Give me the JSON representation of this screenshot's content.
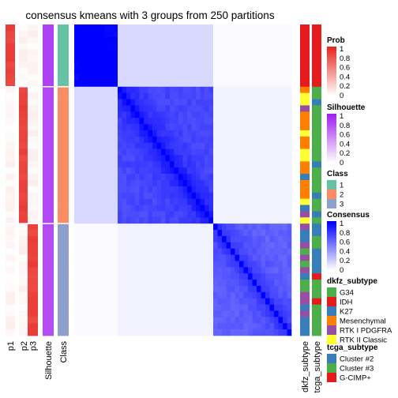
{
  "chart_data": {
    "type": "heatmap",
    "title": "consensus kmeans with 3 groups from 250 partitions",
    "n_samples": 50,
    "class_groups": [
      {
        "class": 1,
        "count": 10
      },
      {
        "class": 2,
        "count": 22
      },
      {
        "class": 3,
        "count": 18
      }
    ],
    "columns": [
      {
        "name": "p1",
        "label": "p1"
      },
      {
        "name": "p2",
        "label": "p2"
      },
      {
        "name": "p3",
        "label": "p3"
      },
      {
        "name": "silhouette",
        "label": "Silhouette"
      },
      {
        "name": "class",
        "label": "Class"
      }
    ],
    "right_columns": [
      {
        "name": "dkfz",
        "label": "dkfz_subtype"
      },
      {
        "name": "tcga",
        "label": "tcga_subtype"
      }
    ],
    "block_consensus": [
      [
        0.97,
        0.15,
        0.02
      ],
      [
        0.15,
        0.72,
        0.05
      ],
      [
        0.02,
        0.05,
        0.62
      ]
    ],
    "legends": {
      "prob": {
        "title": "Prob",
        "ticks": [
          "1",
          "0.8",
          "0.6",
          "0.4",
          "0.2",
          "0"
        ],
        "low": "#ffffff",
        "high": "#e8251f"
      },
      "silhouette": {
        "title": "Silhouette",
        "ticks": [
          "1",
          "0.8",
          "0.6",
          "0.4",
          "0.2",
          "0"
        ],
        "low": "#ffffff",
        "high": "#a020f0"
      },
      "class": {
        "title": "Class",
        "items": [
          {
            "label": "1",
            "color": "#66c2a5"
          },
          {
            "label": "2",
            "color": "#fc8d62"
          },
          {
            "label": "3",
            "color": "#8da0cb"
          }
        ]
      },
      "consensus": {
        "title": "Consensus",
        "ticks": [
          "1",
          "0.8",
          "0.6",
          "0.4",
          "0.2",
          "0"
        ],
        "low": "#ffffff",
        "high": "#0000ff"
      },
      "dkfz": {
        "title": "dkfz_subtype",
        "items": [
          {
            "label": "G34",
            "color": "#4daf4a"
          },
          {
            "label": "IDH",
            "color": "#e41a1c"
          },
          {
            "label": "K27",
            "color": "#377eb8"
          },
          {
            "label": "Mesenchymal",
            "color": "#ff7f00"
          },
          {
            "label": "RTK I PDGFRA",
            "color": "#984ea3"
          },
          {
            "label": "RTK II Classic",
            "color": "#ffff33"
          }
        ]
      },
      "tcga": {
        "title": "tcga_subtype",
        "items": [
          {
            "label": "Cluster #2",
            "color": "#377eb8"
          },
          {
            "label": "Cluster #3",
            "color": "#4daf4a"
          },
          {
            "label": "G-CIMP+",
            "color": "#e41a1c"
          }
        ]
      }
    }
  }
}
